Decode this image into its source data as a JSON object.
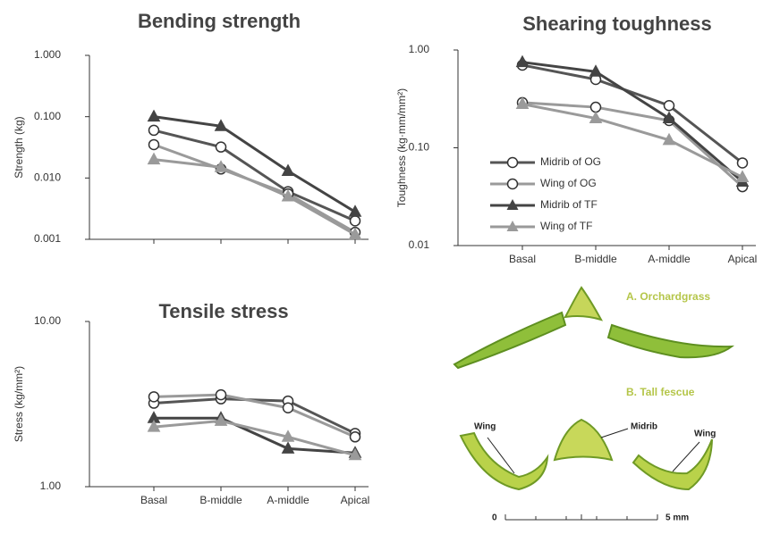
{
  "chart_data": [
    {
      "type": "line",
      "title": "Bending strength",
      "y_label": "Strength (kg)",
      "categories": [
        null,
        null,
        null,
        null
      ],
      "log_scale": true,
      "ylim": [
        0.001,
        1
      ],
      "yticks": [
        0.001,
        {
          "value": 0.01,
          "label": "0.010"
        },
        {
          "value": 0.1,
          "label": "0.100"
        },
        {
          "value": 1,
          "label": "1.000"
        }
      ],
      "legend": false,
      "series": [
        {
          "name": "Midrib of OG",
          "color": "#555555",
          "marker": "circle",
          "values": [
            0.06,
            0.032,
            0.006,
            0.002
          ]
        },
        {
          "name": "Wing of OG",
          "color": "#9a9a9a",
          "marker": "circle",
          "values": [
            0.035,
            0.014,
            0.0055,
            0.0013
          ]
        },
        {
          "name": "Midrib of TF",
          "color": "#444444",
          "marker": "triangle",
          "values": [
            0.1,
            0.07,
            0.013,
            0.0028
          ]
        },
        {
          "name": "Wing of TF",
          "color": "#9a9a9a",
          "marker": "triangle",
          "values": [
            0.02,
            0.015,
            0.005,
            0.0012
          ]
        }
      ]
    },
    {
      "type": "line",
      "title": "Shearing toughness",
      "y_label": "Toughness (kg·mm/mm²)",
      "categories": [
        "Basal",
        "B-middle",
        "A-middle",
        "Apical"
      ],
      "log_scale": true,
      "ylim": [
        0.01,
        1
      ],
      "yticks": [
        0.01,
        {
          "value": 0.1,
          "label": "0.10"
        },
        {
          "value": 1,
          "label": "1.00"
        }
      ],
      "legend": "left",
      "series": [
        {
          "name": "Midrib of OG",
          "color": "#555555",
          "marker": "circle",
          "values": [
            0.7,
            0.5,
            0.27,
            0.07
          ]
        },
        {
          "name": "Wing of OG",
          "color": "#9a9a9a",
          "marker": "circle",
          "values": [
            0.29,
            0.26,
            0.19,
            0.04
          ]
        },
        {
          "name": "Midrib of TF",
          "color": "#444444",
          "marker": "triangle",
          "values": [
            0.75,
            0.6,
            0.2,
            0.045
          ]
        },
        {
          "name": "Wing of TF",
          "color": "#9a9a9a",
          "marker": "triangle",
          "values": [
            0.28,
            0.2,
            0.12,
            0.05
          ]
        }
      ]
    },
    {
      "type": "line",
      "title": "Tensile stress",
      "y_label": "Stress (kg/mm²)",
      "categories": [
        "Basal",
        "B-middle",
        "A-middle",
        "Apical"
      ],
      "log_scale": true,
      "ylim": [
        1,
        10
      ],
      "yticks": [
        {
          "value": 1,
          "label": "1.00"
        },
        {
          "value": 10,
          "label": "10.00"
        }
      ],
      "legend": false,
      "series": [
        {
          "name": "Midrib of OG",
          "color": "#555555",
          "marker": "circle",
          "values": [
            3.2,
            3.4,
            3.3,
            2.1
          ]
        },
        {
          "name": "Wing of OG",
          "color": "#9a9a9a",
          "marker": "circle",
          "values": [
            3.5,
            3.6,
            3.0,
            2.0
          ]
        },
        {
          "name": "Midrib of TF",
          "color": "#444444",
          "marker": "triangle",
          "values": [
            2.6,
            2.6,
            1.7,
            1.6
          ]
        },
        {
          "name": "Wing of TF",
          "color": "#9a9a9a",
          "marker": "triangle",
          "values": [
            2.3,
            2.5,
            2.0,
            1.55
          ]
        }
      ]
    }
  ],
  "photo": {
    "label_a": "A. Orchardgrass",
    "label_b": "B. Tall fescue",
    "annotations": [
      "Wing",
      "Midrib",
      "Wing"
    ],
    "scale_bar": {
      "start": "0",
      "end": "5 mm"
    }
  }
}
